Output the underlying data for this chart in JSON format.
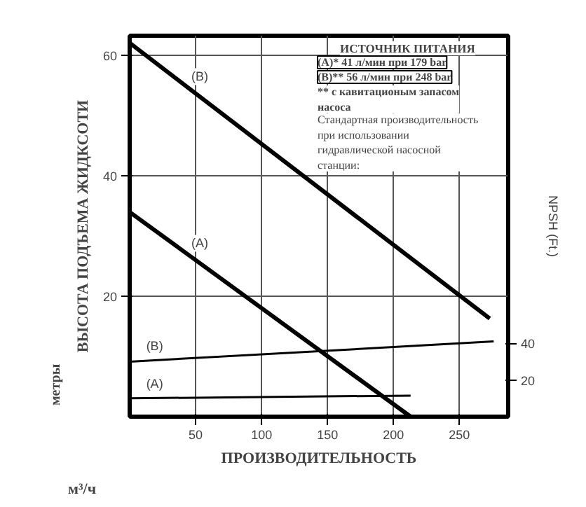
{
  "chart_data": {
    "type": "line",
    "ylabel": "ВЫСОТА ПОДЪЕМА ЖИДКСОТИ",
    "xlabel": "ПРОИЗВОДИТЕЛЬНОСТЬ",
    "y2label": "NPSH (Ft.)",
    "annotations": [
      "метры",
      "м³/ч",
      "ИСТОЧНИК ПИТАНИЯ",
      "(A)* 41 л/мин при 179 bar",
      "(B)** 56 л/мин при 248 bar",
      "** с кавитационым запасом насоса",
      "Стандартная производительность при использовании гидравлической насосной станции:"
    ],
    "series": [
      {
        "name": "(B)",
        "color": "#000000",
        "x": [
          0,
          273
        ],
        "values": [
          62.1,
          16.3
        ]
      },
      {
        "name": "(A)",
        "color": "#000000",
        "x": [
          0,
          213
        ],
        "values": [
          34,
          0
        ]
      },
      {
        "name": "(B)",
        "color": "#000000",
        "axis": "y2",
        "x": [
          0,
          276
        ],
        "values": [
          30,
          41
        ]
      },
      {
        "name": "(A)",
        "color": "#000000",
        "axis": "y2",
        "x": [
          0,
          213
        ],
        "values": [
          10,
          11.5
        ]
      }
    ],
    "xlim": [
      0,
      287
    ],
    "ylim": [
      0,
      63.3
    ],
    "y2lim": [
      0,
      207.7
    ],
    "xticks": [
      50,
      100,
      150,
      200,
      250
    ],
    "yticks": [
      20,
      40,
      60
    ],
    "y2ticks": [
      20,
      40
    ],
    "grid": true,
    "marker": "none",
    "line_style": "solid"
  }
}
